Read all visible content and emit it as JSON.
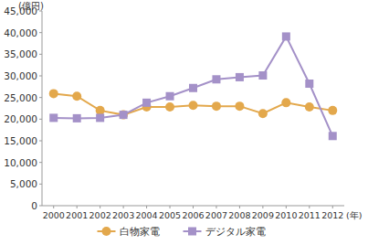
{
  "chart_data": {
    "type": "line",
    "y_label": "(億円)",
    "x_label": "(年)",
    "categories": [
      "2000",
      "2001",
      "2002",
      "2003",
      "2004",
      "2005",
      "2006",
      "2007",
      "2008",
      "2009",
      "2010",
      "2011",
      "2012"
    ],
    "series": [
      {
        "name": "白物家電",
        "color": "#e3a84c",
        "marker": "circle",
        "values": [
          25900,
          25300,
          22000,
          21000,
          22800,
          22800,
          23200,
          23000,
          23000,
          21300,
          23800,
          22800,
          22000
        ]
      },
      {
        "name": "デジタル家電",
        "color": "#a491c8",
        "marker": "square",
        "values": [
          20300,
          20200,
          20300,
          21000,
          23800,
          25300,
          27200,
          29200,
          29700,
          30100,
          39100,
          28200,
          16100
        ]
      }
    ],
    "ylim": [
      0,
      45000
    ],
    "yticks": [
      0,
      {
        "value": 5000,
        "label": "5,000"
      },
      {
        "value": 10000,
        "label": "10,000"
      },
      {
        "value": 15000,
        "label": "15,000"
      },
      {
        "value": 20000,
        "label": "20,000"
      },
      {
        "value": 25000,
        "label": "25,000"
      },
      {
        "value": 30000,
        "label": "30,000"
      },
      {
        "value": 35000,
        "label": "35,000"
      },
      {
        "value": 40000,
        "label": "40,000"
      },
      {
        "value": 45000,
        "label": "45,000"
      }
    ],
    "grid": false,
    "legend": "bottom"
  }
}
